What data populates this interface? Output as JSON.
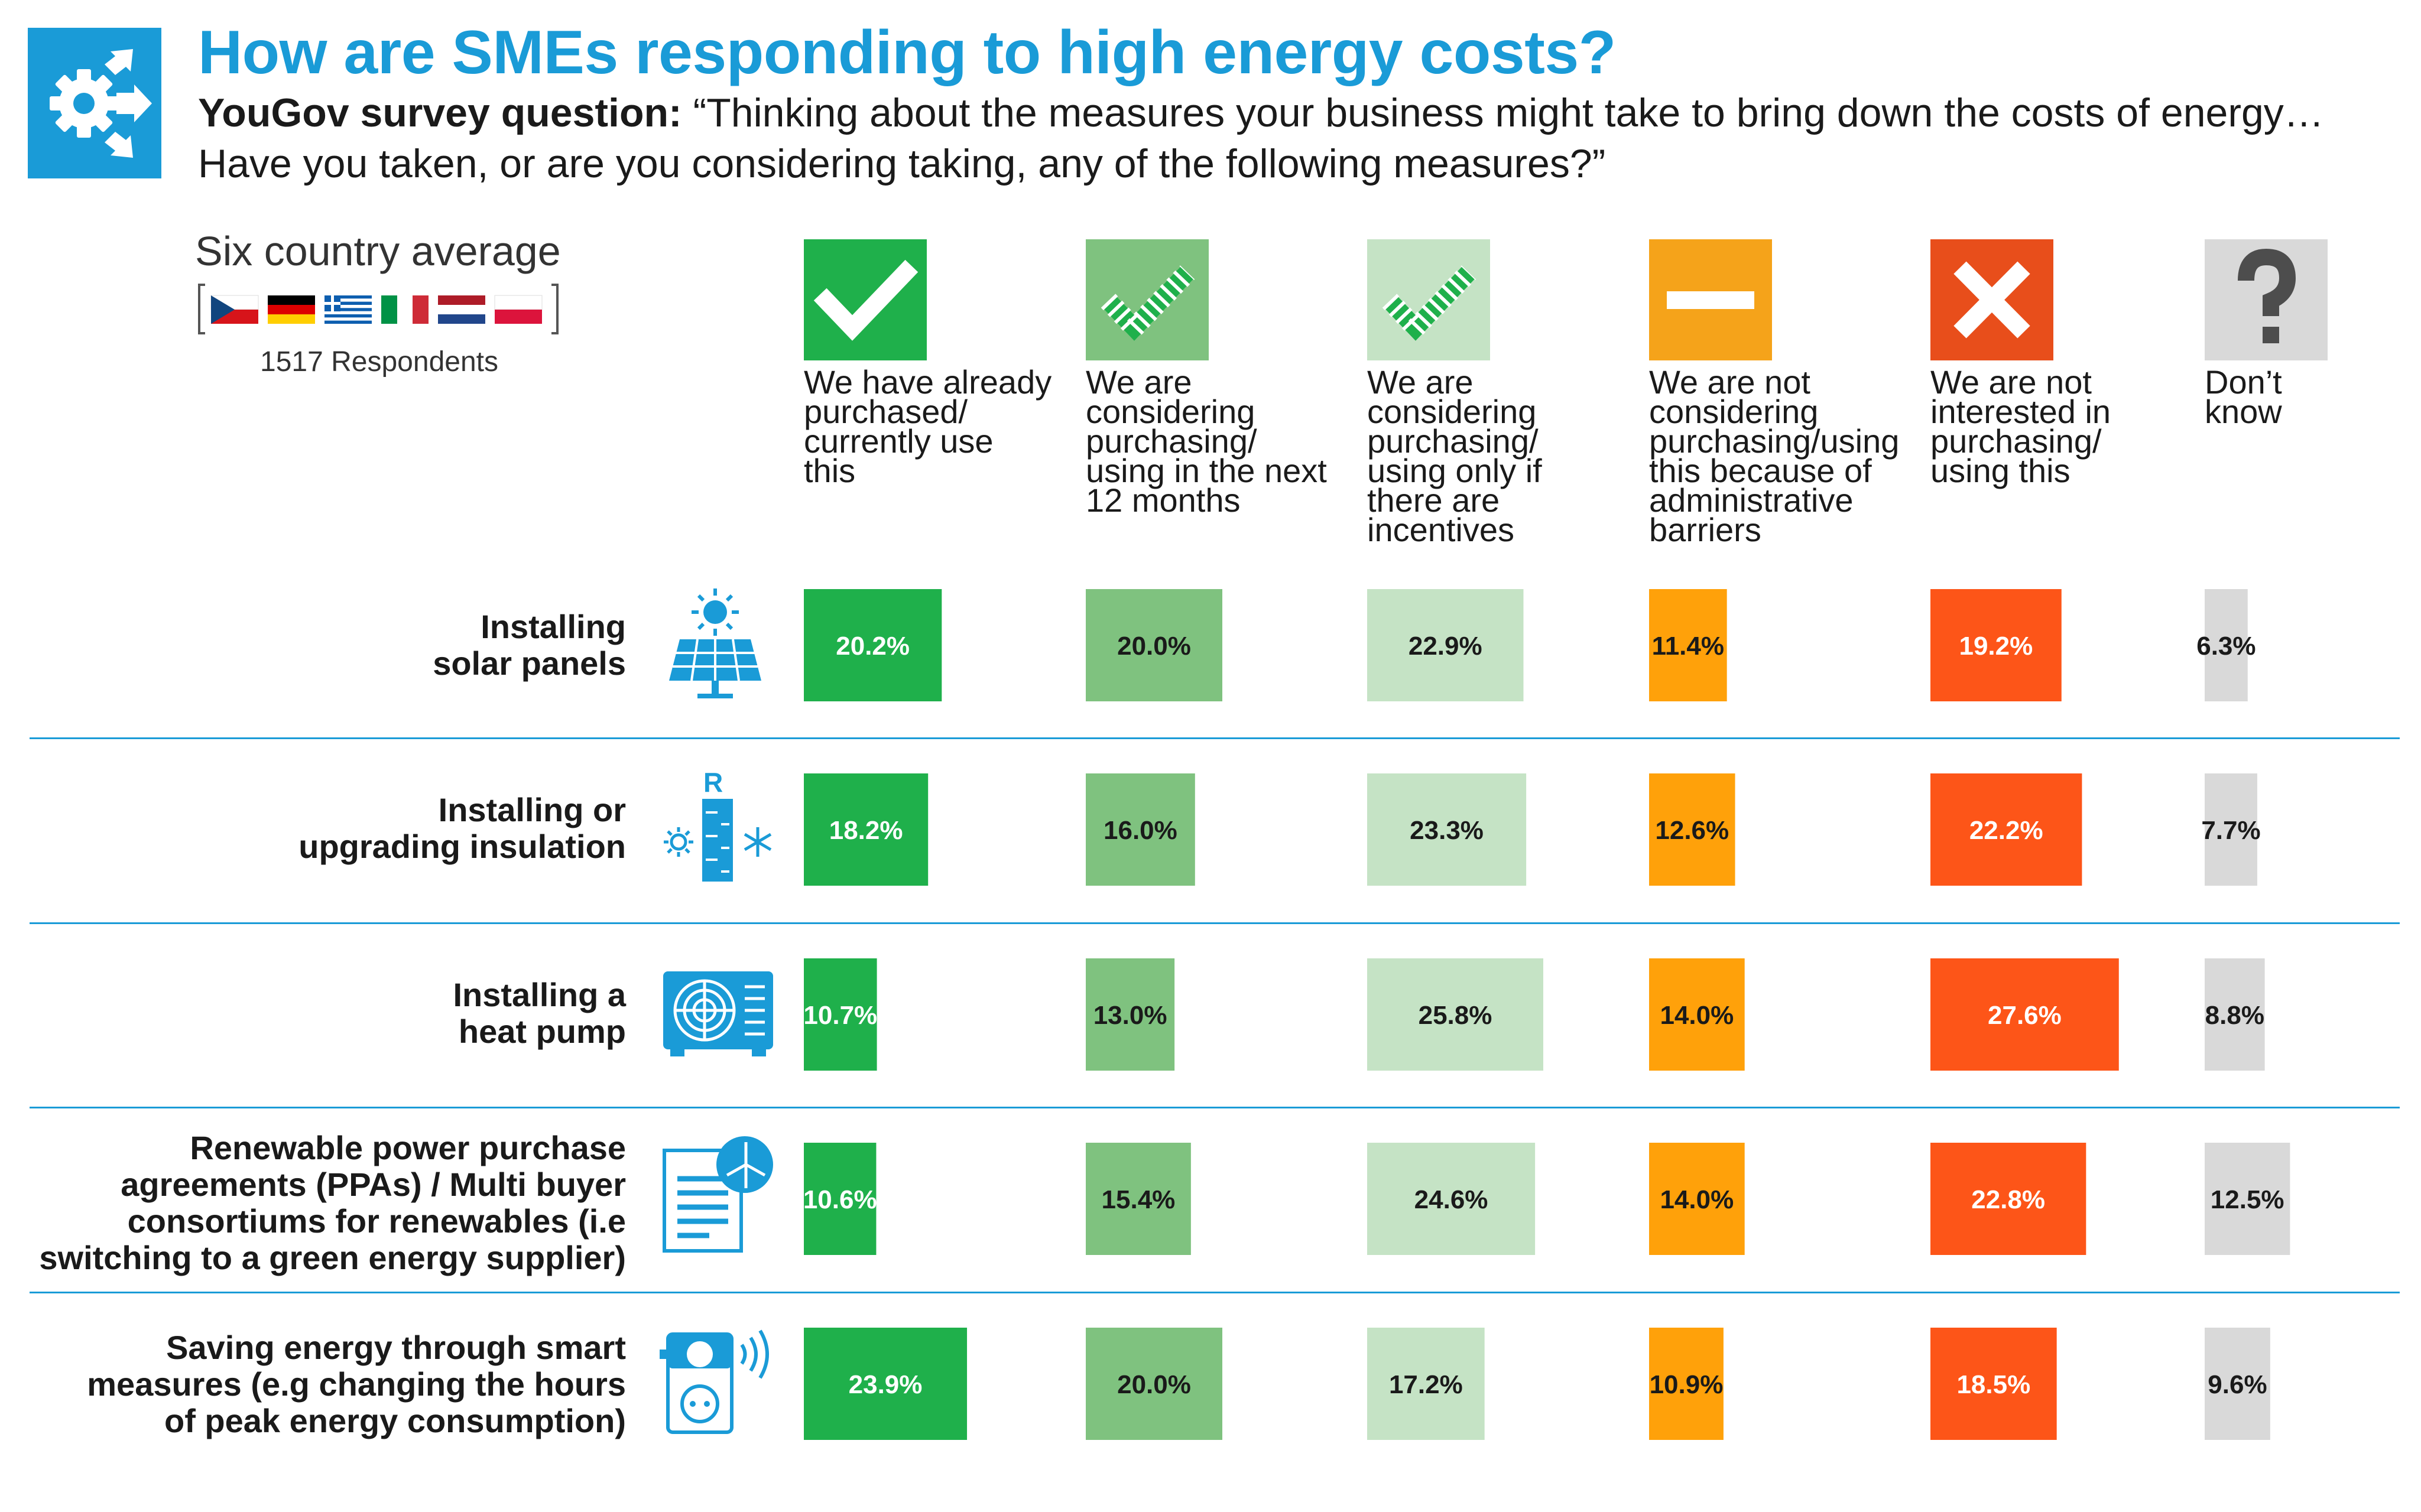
{
  "header": {
    "title": "How are SMEs responding to high energy costs?",
    "question_prefix": "YouGov survey question:",
    "question_text": "“Thinking about the measures your business might take to bring down the costs of energy… Have you taken, or are you considering taking, any of the following measures?”"
  },
  "legend_box": {
    "title": "Six country average",
    "respondents": "1517 Respondents"
  },
  "colors": {
    "accent": "#1a9bd7",
    "already": "#1fb04b",
    "next12": "#7fc27f",
    "incentives": "#c5e3c5",
    "admin": "#ffa10a",
    "not_interested": "#fd5518",
    "dont_know": "#d9d9d9"
  },
  "icons": {
    "header": "gear-arrows-icon",
    "already": "check-icon",
    "next12": "dotted-check-icon",
    "incentives": "dotted-check-icon",
    "admin": "minus-icon",
    "not_interested": "cross-icon",
    "dont_know": "question-mark-icon",
    "rows": [
      "solar-panel-icon",
      "insulation-icon",
      "heat-pump-icon",
      "ppa-document-icon",
      "smart-plug-icon"
    ]
  },
  "chart_data": {
    "type": "bar",
    "title": "How are SMEs responding to high energy costs?",
    "unit": "%",
    "columns": [
      "We have already purchased/ currently use this",
      "We are considering purchasing/ using in the next 12 months",
      "We are considering purchasing/ using only if there are incentives",
      "We are not considering purchasing/using this because of administrative barriers",
      "We are not interested in purchasing/ using this",
      "Don’t know"
    ],
    "categories": [
      "Installing solar panels",
      "Installing or upgrading insulation",
      "Installing a heat pump",
      "Renewable power purchase agreements (PPAs) / Multi buyer consortiums for renewables (i.e switching to a green energy supplier)",
      "Saving energy through smart measures (e.g changing the hours of peak energy consumption)"
    ],
    "series": [
      {
        "values": [
          20.2,
          18.2,
          10.7,
          10.6,
          23.9
        ],
        "labels": [
          "20.2%",
          "18.2%",
          "10.7%",
          "10.6%",
          "23.9%"
        ]
      },
      {
        "values": [
          20.0,
          16.0,
          13.0,
          15.4,
          20.0
        ],
        "labels": [
          "20.0%",
          "16.0%",
          "13.0%",
          "15.4%",
          "20.0%"
        ]
      },
      {
        "values": [
          22.9,
          23.3,
          25.8,
          24.6,
          17.2
        ],
        "labels": [
          "22.9%",
          "23.3%",
          "25.8%",
          "24.6%",
          "17.2%"
        ]
      },
      {
        "values": [
          11.4,
          12.6,
          14.0,
          14.0,
          10.9
        ],
        "labels": [
          "11.4%",
          "12.6%",
          "14.0%",
          "14.0%",
          "10.9%"
        ]
      },
      {
        "values": [
          19.2,
          22.2,
          27.6,
          22.8,
          18.5
        ],
        "labels": [
          "19.2%",
          "22.2%",
          "27.6%",
          "22.8%",
          "18.5%"
        ]
      },
      {
        "values": [
          6.3,
          7.7,
          8.8,
          12.5,
          9.6
        ],
        "labels": [
          "6.3%",
          "7.7%",
          "8.8%",
          "12.5%",
          "9.6%"
        ]
      }
    ],
    "column_label_lines": [
      [
        "We have already",
        "purchased/",
        "currently use",
        "this"
      ],
      [
        "We are",
        "considering",
        "purchasing/",
        "using in the next",
        "12 months"
      ],
      [
        "We are",
        "considering",
        "purchasing/",
        "using only if",
        "there are",
        "incentives"
      ],
      [
        "We are not",
        "considering",
        "purchasing/using",
        "this because of",
        "administrative",
        "barriers"
      ],
      [
        "We are not",
        "interested in",
        "purchasing/",
        "using this"
      ],
      [
        "Don’t",
        "know"
      ]
    ],
    "row_label_lines": [
      [
        "Installing",
        "solar panels"
      ],
      [
        "Installing or",
        "upgrading insulation"
      ],
      [
        "Installing a",
        "heat pump"
      ],
      [
        "Renewable power purchase",
        "agreements (PPAs) / Multi buyer",
        "consortiums for renewables (i.e",
        "switching to a green energy supplier)"
      ],
      [
        "Saving energy through smart",
        "measures (e.g changing the hours",
        "of peak energy consumption)"
      ]
    ]
  }
}
